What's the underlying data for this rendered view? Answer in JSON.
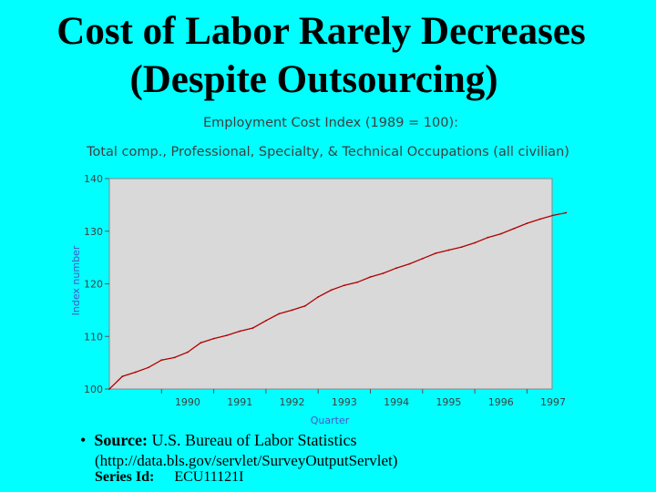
{
  "slide": {
    "title_line1": "Cost of Labor Rarely Decreases",
    "title_line2": "(Despite Outsourcing)"
  },
  "chart_data": {
    "type": "line",
    "title": "Employment Cost Index (1989 = 100):",
    "subtitle": "Total comp., Professional, Specialty, & Technical Occupations (all civilian)",
    "xlabel": "Quarter",
    "ylabel": "Index number",
    "x_ticks": [
      "1990",
      "1991",
      "1992",
      "1993",
      "1994",
      "1995",
      "1996",
      "1997"
    ],
    "y_ticks": [
      "100",
      "110",
      "120",
      "130",
      "140"
    ],
    "ylim": [
      100,
      140
    ],
    "grid": false,
    "colors": {
      "background": "#00FFFF",
      "plot_area": "#D9D9D9",
      "line": "#B00000",
      "axis_text": "#3F3F3F",
      "label_text": "#4A55C8"
    },
    "series": [
      {
        "x": [
          "1989Q1",
          "1989Q2",
          "1989Q3",
          "1989Q4",
          "1990Q1",
          "1990Q2",
          "1990Q3",
          "1990Q4",
          "1991Q1",
          "1991Q2",
          "1991Q3",
          "1991Q4",
          "1992Q1",
          "1992Q2",
          "1992Q3",
          "1992Q4",
          "1993Q1",
          "1993Q2",
          "1993Q3",
          "1993Q4",
          "1994Q1",
          "1994Q2",
          "1994Q3",
          "1994Q4",
          "1995Q1",
          "1995Q2",
          "1995Q3",
          "1995Q4",
          "1996Q1",
          "1996Q2",
          "1996Q3",
          "1996Q4",
          "1997Q1",
          "1997Q2",
          "1997Q3",
          "1997Q4"
        ],
        "values": [
          100.0,
          102.4,
          103.2,
          104.1,
          105.5,
          106.0,
          107.0,
          108.8,
          109.6,
          110.2,
          111.0,
          111.6,
          113.0,
          114.3,
          115.0,
          115.8,
          117.5,
          118.8,
          119.7,
          120.3,
          121.3,
          122.0,
          123.0,
          123.8,
          124.8,
          125.8,
          126.4,
          127.0,
          127.8,
          128.8,
          129.5,
          130.5,
          131.5,
          132.3,
          133.0,
          133.5
        ]
      }
    ]
  },
  "source": {
    "bullet": "•",
    "label": "Source:",
    "agency": "U.S. Bureau of Labor Statistics",
    "url_line": "(http://data.bls.gov/servlet/SurveyOutputServlet)",
    "series_label": "Series Id:",
    "series_id": "ECU11121I"
  }
}
